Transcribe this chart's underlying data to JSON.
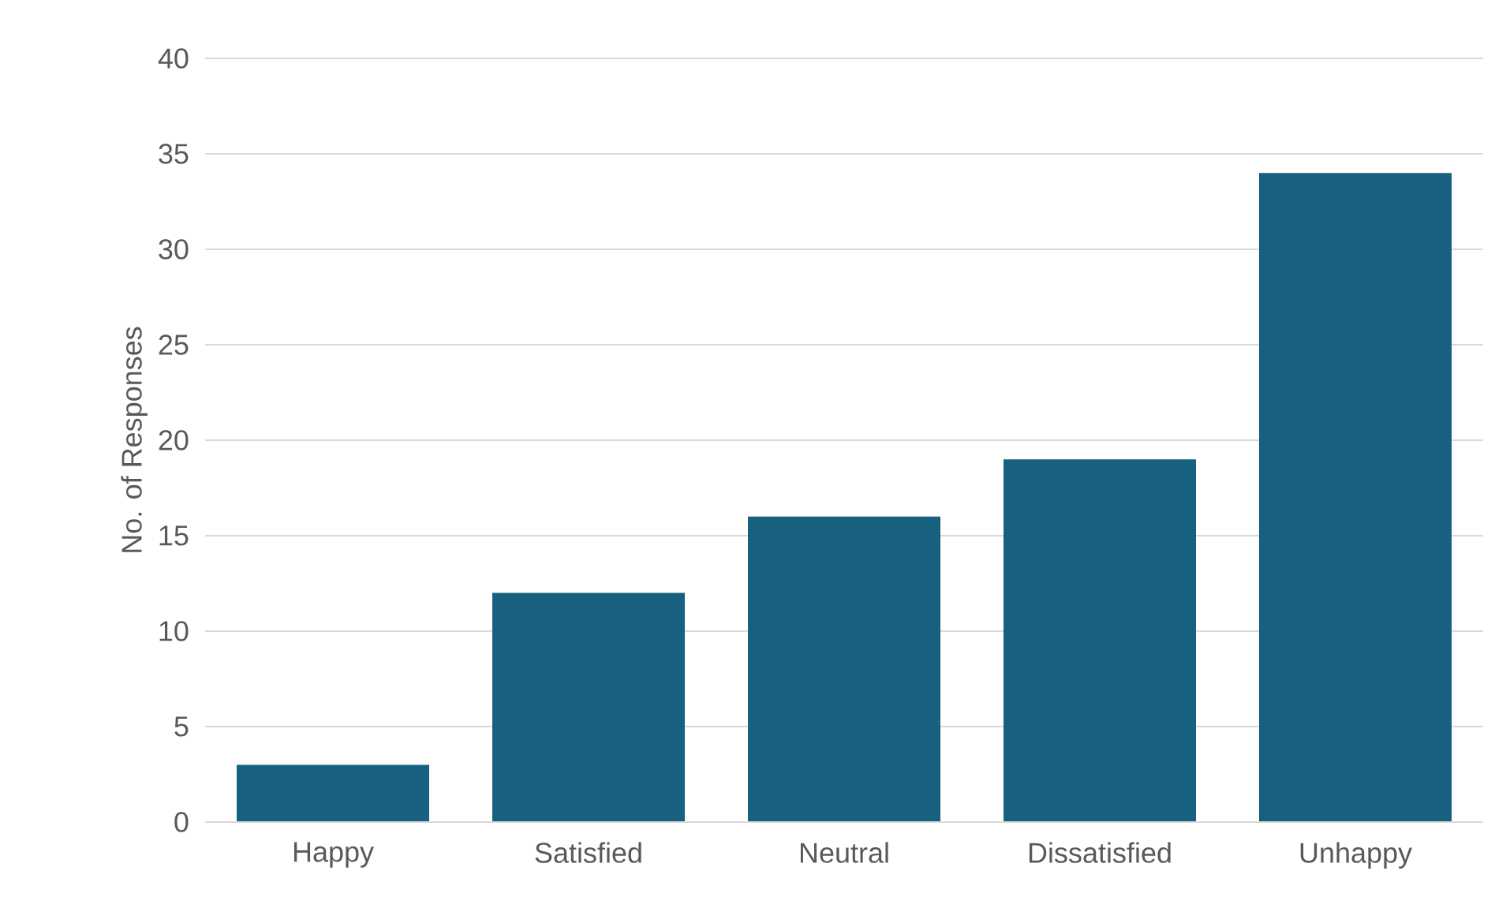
{
  "chart_data": {
    "type": "bar",
    "ylabel": "No. of Responses",
    "categories": [
      "Happy",
      "Satisfied",
      "Neutral",
      "Dissatisfied",
      "Unhappy"
    ],
    "values": [
      3,
      12,
      16,
      19,
      34
    ],
    "color": "#17607f",
    "ylim": [
      0,
      40
    ],
    "yticks": [
      0,
      5,
      10,
      15,
      20,
      25,
      30,
      35,
      40
    ],
    "grid": "y"
  }
}
